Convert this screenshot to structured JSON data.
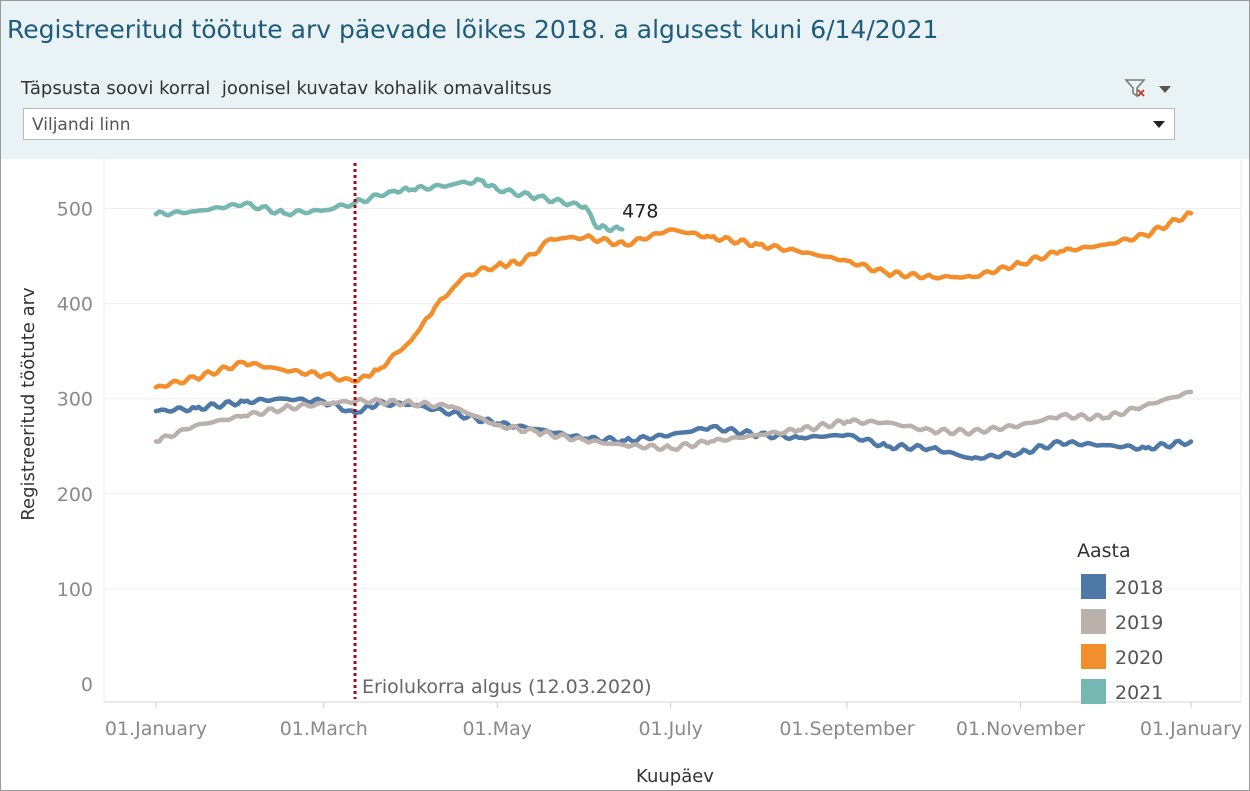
{
  "header": {
    "title": "Registreeritud töötute arv päevade lõikes 2018. a algusest kuni 6/14/2021",
    "filter_label": "Täpsusta soovi korral  joonisel kuvatav kohalik omavalitsus",
    "filter_value": "Viljandi linn",
    "clear_filter_icon": "funnel-x-icon",
    "menu_icon": "caret-down-icon"
  },
  "chart_data": {
    "type": "line",
    "xlabel": "Kuupäev",
    "ylabel": "Registreeritud töötute arv",
    "ylim": [
      0,
      550
    ],
    "yticks": [
      0,
      100,
      200,
      300,
      400,
      500
    ],
    "x_domain": [
      "01.January",
      "01.January"
    ],
    "xticks": [
      {
        "date": "01-01",
        "label": "01.January"
      },
      {
        "date": "03-01",
        "label": "01.March"
      },
      {
        "date": "05-01",
        "label": "01.May"
      },
      {
        "date": "07-01",
        "label": "01.July"
      },
      {
        "date": "09-01",
        "label": "01.September"
      },
      {
        "date": "11-01",
        "label": "01.November"
      },
      {
        "date": "12-31",
        "label": "01.January"
      }
    ],
    "grid": true,
    "legend": {
      "title": "Aasta",
      "position": "bottom-right"
    },
    "reference_line": {
      "date": "03-12",
      "label": "Eriolukorra algus (12.03.2020)",
      "color": "#a10c17"
    },
    "peak_label": {
      "series": "2021",
      "date": "06-14",
      "value": 478,
      "text": "478"
    },
    "series": [
      {
        "name": "2018",
        "color": "#4e79a7",
        "points": [
          [
            "01-01",
            287
          ],
          [
            "01-15",
            290
          ],
          [
            "02-01",
            297
          ],
          [
            "02-15",
            300
          ],
          [
            "03-01",
            297
          ],
          [
            "03-12",
            285
          ],
          [
            "03-20",
            295
          ],
          [
            "04-01",
            294
          ],
          [
            "04-15",
            285
          ],
          [
            "05-01",
            274
          ],
          [
            "05-15",
            268
          ],
          [
            "06-01",
            258
          ],
          [
            "06-15",
            256
          ],
          [
            "07-01",
            262
          ],
          [
            "07-15",
            270
          ],
          [
            "08-01",
            262
          ],
          [
            "08-15",
            259
          ],
          [
            "09-01",
            262
          ],
          [
            "09-15",
            250
          ],
          [
            "10-01",
            248
          ],
          [
            "10-15",
            237
          ],
          [
            "11-01",
            243
          ],
          [
            "11-15",
            254
          ],
          [
            "12-01",
            251
          ],
          [
            "12-15",
            248
          ],
          [
            "12-31",
            255
          ]
        ]
      },
      {
        "name": "2019",
        "color": "#bab0ac",
        "points": [
          [
            "01-01",
            255
          ],
          [
            "01-15",
            272
          ],
          [
            "02-01",
            282
          ],
          [
            "02-15",
            290
          ],
          [
            "03-01",
            295
          ],
          [
            "03-15",
            298
          ],
          [
            "04-01",
            295
          ],
          [
            "04-15",
            292
          ],
          [
            "05-01",
            272
          ],
          [
            "05-15",
            265
          ],
          [
            "06-01",
            256
          ],
          [
            "06-15",
            251
          ],
          [
            "07-01",
            248
          ],
          [
            "07-15",
            255
          ],
          [
            "08-01",
            262
          ],
          [
            "08-15",
            267
          ],
          [
            "09-01",
            276
          ],
          [
            "09-15",
            275
          ],
          [
            "10-01",
            266
          ],
          [
            "10-15",
            265
          ],
          [
            "11-01",
            272
          ],
          [
            "11-15",
            282
          ],
          [
            "12-01",
            280
          ],
          [
            "12-15",
            293
          ],
          [
            "12-31",
            307
          ]
        ]
      },
      {
        "name": "2020",
        "color": "#f28e2b",
        "points": [
          [
            "01-01",
            312
          ],
          [
            "01-15",
            322
          ],
          [
            "02-01",
            338
          ],
          [
            "02-15",
            330
          ],
          [
            "03-01",
            325
          ],
          [
            "03-12",
            318
          ],
          [
            "03-20",
            330
          ],
          [
            "04-01",
            362
          ],
          [
            "04-10",
            400
          ],
          [
            "04-20",
            430
          ],
          [
            "05-01",
            440
          ],
          [
            "05-10",
            444
          ],
          [
            "05-20",
            468
          ],
          [
            "06-01",
            470
          ],
          [
            "06-15",
            462
          ],
          [
            "07-01",
            478
          ],
          [
            "07-15",
            470
          ],
          [
            "08-01",
            462
          ],
          [
            "08-15",
            455
          ],
          [
            "09-01",
            445
          ],
          [
            "09-15",
            432
          ],
          [
            "10-01",
            428
          ],
          [
            "10-15",
            428
          ],
          [
            "11-01",
            442
          ],
          [
            "11-15",
            455
          ],
          [
            "12-01",
            462
          ],
          [
            "12-15",
            472
          ],
          [
            "12-31",
            495
          ]
        ]
      },
      {
        "name": "2021",
        "color": "#76b7b2",
        "points": [
          [
            "01-01",
            494
          ],
          [
            "01-15",
            497
          ],
          [
            "02-01",
            505
          ],
          [
            "02-15",
            495
          ],
          [
            "03-01",
            498
          ],
          [
            "03-12",
            506
          ],
          [
            "03-25",
            518
          ],
          [
            "04-01",
            520
          ],
          [
            "04-15",
            525
          ],
          [
            "04-25",
            530
          ],
          [
            "05-01",
            520
          ],
          [
            "05-15",
            512
          ],
          [
            "06-01",
            502
          ],
          [
            "06-05",
            480
          ],
          [
            "06-14",
            478
          ]
        ]
      }
    ]
  }
}
